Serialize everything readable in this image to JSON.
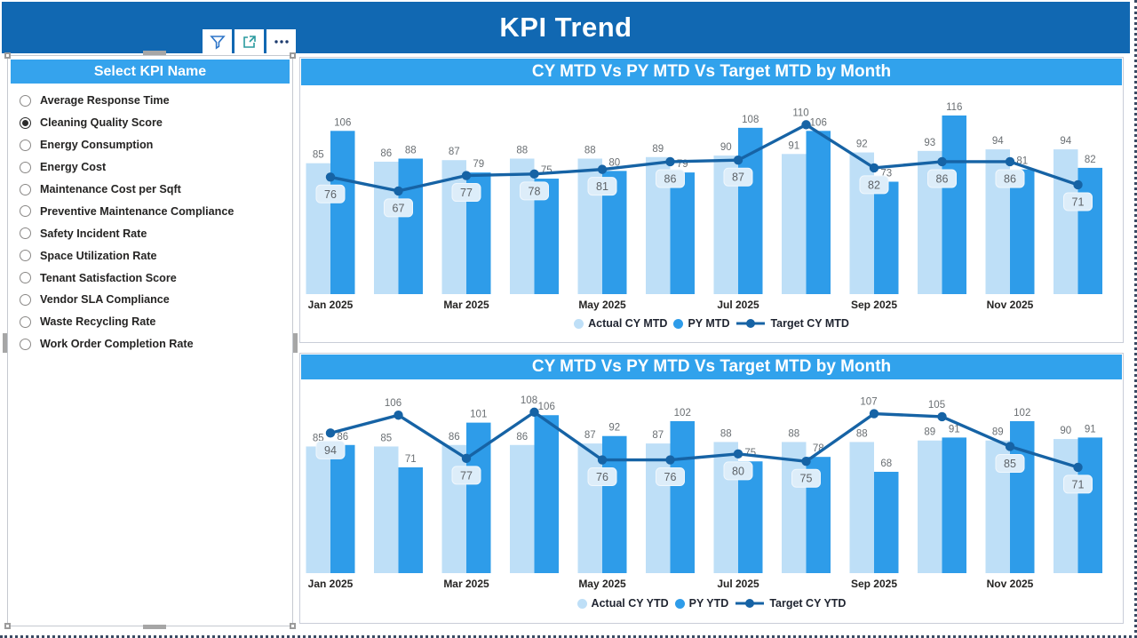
{
  "page": {
    "title": "KPI Trend"
  },
  "toolbar": {
    "buttons": [
      {
        "name": "filter",
        "icon": "funnel-icon"
      },
      {
        "name": "focus-mode",
        "icon": "popout-icon"
      },
      {
        "name": "more-options",
        "icon": "ellipsis-icon"
      }
    ]
  },
  "slicer": {
    "header": "Select KPI Name",
    "selected_index": 1,
    "items": [
      "Average Response Time",
      "Cleaning Quality Score",
      "Energy Consumption",
      "Energy Cost",
      "Maintenance Cost per Sqft",
      "Preventive Maintenance Compliance",
      "Safety Incident Rate",
      "Space Utilization Rate",
      "Tenant Satisfaction Score",
      "Vendor SLA Compliance",
      "Waste Recycling Rate",
      "Work Order Completion Rate"
    ]
  },
  "chart_data": [
    {
      "type": "bar",
      "title": "CY MTD Vs PY MTD Vs Target MTD by Month",
      "categories": [
        "Jan 2025",
        "Feb 2025",
        "Mar 2025",
        "Apr 2025",
        "May 2025",
        "Jun 2025",
        "Jul 2025",
        "Aug 2025",
        "Sep 2025",
        "Oct 2025",
        "Nov 2025",
        "Dec 2025"
      ],
      "x_tick_labels_shown": [
        "Jan 2025",
        "Mar 2025",
        "May 2025",
        "Jul 2025",
        "Sep 2025",
        "Nov 2025"
      ],
      "series": [
        {
          "name": "Actual CY MTD",
          "kind": "bar",
          "color": "#BEDFF7",
          "values": [
            85,
            86,
            87,
            88,
            88,
            89,
            90,
            91,
            92,
            93,
            94,
            94
          ]
        },
        {
          "name": "PY MTD",
          "kind": "bar",
          "color": "#2E9CE9",
          "values": [
            106,
            88,
            79,
            75,
            80,
            79,
            108,
            106,
            73,
            116,
            81,
            82
          ]
        },
        {
          "name": "Target CY MTD",
          "kind": "line",
          "color": "#1663A5",
          "values": [
            76,
            67,
            77,
            78,
            81,
            86,
            87,
            110,
            82,
            86,
            86,
            71
          ],
          "label_positions": [
            "below",
            "below",
            "below",
            "below",
            "below",
            "below",
            "below",
            "above",
            "below",
            "below",
            "below",
            "below"
          ]
        }
      ],
      "ylim": [
        0,
        135
      ],
      "grid": false,
      "data_labels": true,
      "legend_position": "bottom"
    },
    {
      "type": "bar",
      "title": "CY MTD Vs PY MTD Vs Target MTD by Month",
      "categories": [
        "Jan 2025",
        "Feb 2025",
        "Mar 2025",
        "Apr 2025",
        "May 2025",
        "Jun 2025",
        "Jul 2025",
        "Aug 2025",
        "Sep 2025",
        "Oct 2025",
        "Nov 2025",
        "Dec 2025"
      ],
      "x_tick_labels_shown": [
        "Jan 2025",
        "Mar 2025",
        "May 2025",
        "Jul 2025",
        "Sep 2025",
        "Nov 2025"
      ],
      "series": [
        {
          "name": "Actual CY YTD",
          "kind": "bar",
          "color": "#BEDFF7",
          "values": [
            85,
            85,
            86,
            86,
            87,
            87,
            88,
            88,
            88,
            89,
            89,
            90
          ]
        },
        {
          "name": "PY YTD",
          "kind": "bar",
          "color": "#2E9CE9",
          "values": [
            86,
            71,
            101,
            106,
            92,
            102,
            75,
            78,
            68,
            91,
            102,
            91
          ]
        },
        {
          "name": "Target CY YTD",
          "kind": "line",
          "color": "#1663A5",
          "values": [
            94,
            106,
            77,
            108,
            76,
            76,
            80,
            75,
            107,
            105,
            85,
            71
          ],
          "label_positions": [
            "below",
            "above",
            "below",
            "above",
            "below",
            "below",
            "below",
            "below",
            "above",
            "above",
            "below",
            "below"
          ]
        }
      ],
      "ylim": [
        0,
        127
      ],
      "grid": false,
      "data_labels": true,
      "legend_position": "bottom"
    }
  ],
  "colors": {
    "header_bg": "#1168B2",
    "band_blue": "#31A2EC",
    "actual_bar": "#BEDFF7",
    "py_bar": "#2E9CE9",
    "target_line": "#1663A5",
    "bar_label": "#6A6F73",
    "line_label_bg": "#DDEDF9",
    "axis_label": "#252423"
  }
}
